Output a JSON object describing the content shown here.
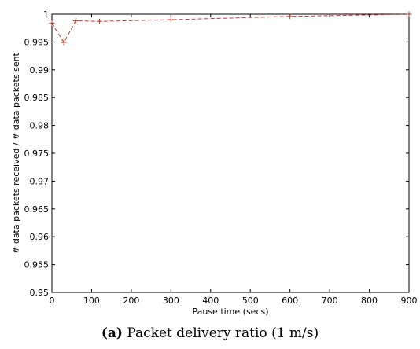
{
  "caption": {
    "tag": "(a)",
    "text": "Packet delivery ratio (1 m/s)"
  },
  "chart_data": {
    "type": "line",
    "title": "",
    "xlabel": "Pause time (secs)",
    "ylabel": "# data packets received / # data packets sent",
    "xlim": [
      0,
      900
    ],
    "ylim": [
      0.95,
      1.0
    ],
    "xticks": [
      0,
      100,
      200,
      300,
      400,
      500,
      600,
      700,
      800,
      900
    ],
    "yticks": [
      0.95,
      0.955,
      0.96,
      0.965,
      0.97,
      0.975,
      0.98,
      0.985,
      0.99,
      0.995,
      1
    ],
    "yticklabels": [
      "0.95",
      "0.955",
      "0.96",
      "0.965",
      "0.97",
      "0.975",
      "0.98",
      "0.985",
      "0.99",
      "0.995",
      "1"
    ],
    "grid": false,
    "series": [
      {
        "color": "#c0392b",
        "marker": "+",
        "linestyle": "dashed",
        "x": [
          0,
          30,
          60,
          120,
          300,
          600,
          900
        ],
        "y": [
          0.9984,
          0.9949,
          0.9988,
          0.9987,
          0.999,
          0.9996,
          1.0
        ]
      }
    ]
  }
}
